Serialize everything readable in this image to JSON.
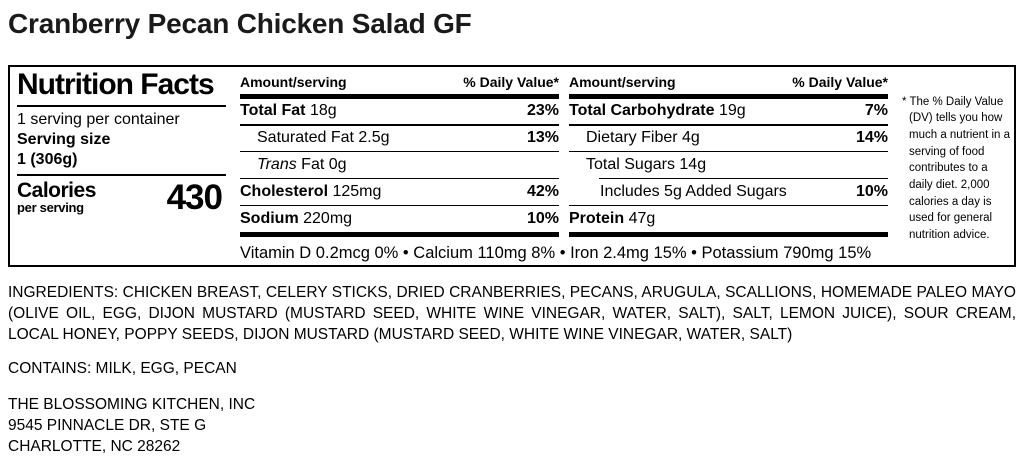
{
  "title": "Cranberry Pecan Chicken Salad GF",
  "panel": {
    "heading": "Nutrition Facts",
    "servings_per_container": "1 serving per container",
    "serving_size_label": "Serving size",
    "serving_size_value": "1 (306g)",
    "calories_label": "Calories",
    "calories_sublabel": "per serving",
    "calories_value": "430",
    "col_header_amount": "Amount/serving",
    "col_header_dv": "% Daily Value*",
    "col1": {
      "rows": [
        {
          "name": "Total Fat",
          "amount": "18g",
          "dv": "23%"
        },
        {
          "name": "Saturated Fat",
          "amount": "2.5g",
          "dv": "13%"
        },
        {
          "name_italic": "Trans",
          "name": "Fat",
          "amount": "0g",
          "dv": ""
        },
        {
          "name": "Cholesterol",
          "amount": "125mg",
          "dv": "42%"
        },
        {
          "name": "Sodium",
          "amount": "220mg",
          "dv": "10%"
        }
      ]
    },
    "col2": {
      "rows": [
        {
          "name": "Total Carbohydrate",
          "amount": "19g",
          "dv": "7%"
        },
        {
          "name": "Dietary Fiber",
          "amount": "4g",
          "dv": "14%"
        },
        {
          "name": "Total Sugars",
          "amount": "14g",
          "dv": ""
        },
        {
          "name": "Includes 5g Added Sugars",
          "amount": "",
          "dv": "10%"
        },
        {
          "name": "Protein",
          "amount": "47g",
          "dv": ""
        }
      ]
    },
    "micronutrients": "Vitamin D 0.2mcg 0% • Calcium 110mg 8% • Iron 2.4mg 15% • Potassium 790mg 15%",
    "footnote": "* The % Daily Value (DV) tells you how much a nutrient in a serving of food contributes to a daily diet. 2,000 calories a day is used for general nutrition advice."
  },
  "ingredients": "INGREDIENTS: CHICKEN BREAST, CELERY STICKS, DRIED CRANBERRIES, PECANS, ARUGULA, SCALLIONS, HOMEMADE PALEO MAYO (OLIVE OIL, EGG, DIJON MUSTARD (MUSTARD SEED, WHITE WINE VINEGAR, WATER, SALT), SALT, LEMON JUICE), SOUR CREAM, LOCAL HONEY, POPPY SEEDS, DIJON MUSTARD (MUSTARD SEED, WHITE WINE VINEGAR, WATER, SALT)",
  "contains": "CONTAINS: MILK, EGG, PECAN",
  "company": {
    "name": "THE BLOSSOMING KITCHEN, INC",
    "address_line1": "9545 PINNACLE DR, STE G",
    "address_line2": "CHARLOTTE, NC 28262"
  },
  "colors": {
    "background": "#ffffff",
    "text": "#000000",
    "title": "#1a1a1a"
  }
}
